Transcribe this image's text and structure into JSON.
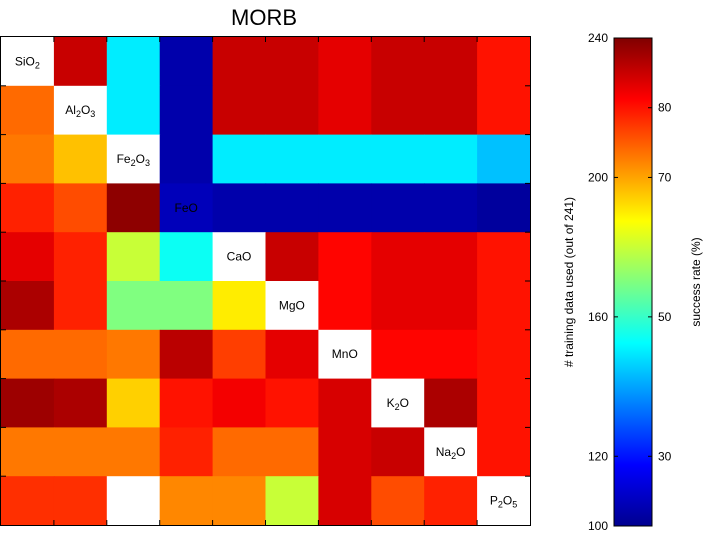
{
  "chart_data": {
    "type": "heatmap",
    "title": "MORB",
    "rows": [
      "SiO2",
      "Al2O3",
      "Fe2O3",
      "FeO",
      "CaO",
      "MgO",
      "MnO",
      "K2O",
      "Na2O",
      "P2O5"
    ],
    "diagonal_labels": [
      [
        {
          "t": "SiO"
        },
        {
          "t": "2",
          "sub": true
        }
      ],
      [
        {
          "t": "Al"
        },
        {
          "t": "2",
          "sub": true
        },
        {
          "t": "O"
        },
        {
          "t": "3",
          "sub": true
        }
      ],
      [
        {
          "t": "Fe"
        },
        {
          "t": "2",
          "sub": true
        },
        {
          "t": "O"
        },
        {
          "t": "3",
          "sub": true
        }
      ],
      [
        {
          "t": "FeO"
        }
      ],
      [
        {
          "t": "CaO"
        }
      ],
      [
        {
          "t": "MgO"
        }
      ],
      [
        {
          "t": "MnO"
        }
      ],
      [
        {
          "t": "K"
        },
        {
          "t": "2",
          "sub": true
        },
        {
          "t": "O"
        }
      ],
      [
        {
          "t": "Na"
        },
        {
          "t": "2",
          "sub": true
        },
        {
          "t": "O"
        }
      ],
      [
        {
          "t": "P"
        },
        {
          "t": "2",
          "sub": true
        },
        {
          "t": "O"
        },
        {
          "t": "5",
          "sub": true
        }
      ]
    ],
    "values": [
      [
        null,
        85,
        45,
        23,
        85,
        85,
        83,
        85,
        85,
        80
      ],
      [
        74,
        null,
        45,
        23,
        85,
        85,
        83,
        85,
        85,
        80
      ],
      [
        73,
        68,
        null,
        23,
        45,
        45,
        45,
        45,
        45,
        42
      ],
      [
        79,
        76,
        89,
        24,
        23,
        23,
        23,
        23,
        23,
        22
      ],
      [
        83,
        79,
        60,
        47,
        null,
        85,
        81,
        83,
        83,
        80
      ],
      [
        87,
        79,
        55,
        55,
        65,
        null,
        81,
        83,
        83,
        80
      ],
      [
        74,
        74,
        73,
        86,
        77,
        83,
        null,
        81,
        81,
        80
      ],
      [
        88,
        87,
        67,
        80,
        82,
        80,
        84,
        null,
        87,
        80
      ],
      [
        73,
        73,
        73,
        79,
        74,
        74,
        84,
        85,
        null,
        80
      ],
      [
        78,
        78,
        null,
        72,
        72,
        60,
        84,
        76,
        79,
        null
      ]
    ],
    "colorbar": {
      "left_label": "# training data used (out of 241)",
      "right_label": "success rate (%)",
      "left_ticks": [
        "100",
        "120",
        "160",
        "200",
        "240"
      ],
      "right_ticks": [
        "30",
        "50",
        "70",
        "80"
      ],
      "left_range": [
        100,
        240
      ],
      "right_range": [
        20,
        90
      ],
      "left_tick_values": [
        100,
        120,
        160,
        200,
        240
      ],
      "right_tick_values": [
        30,
        50,
        70,
        80
      ]
    }
  }
}
